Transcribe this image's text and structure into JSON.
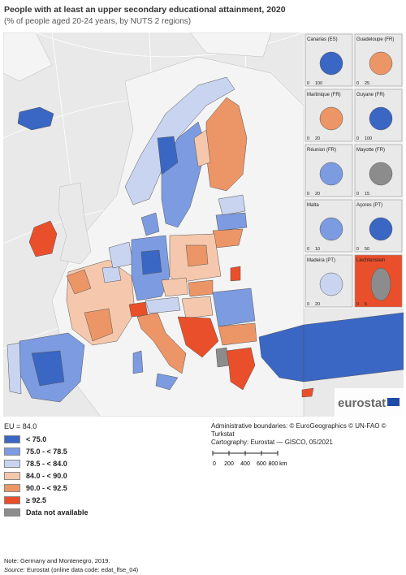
{
  "title": "People with at least an upper secondary educational attainment, 2020",
  "subtitle": "(% of people aged 20-24 years, by NUTS 2 regions)",
  "colors": {
    "lt75": "#3a66c4",
    "b75_785": "#7c9be0",
    "b785_84": "#c9d4f0",
    "b84_90": "#f5c8ad",
    "b90_925": "#ec9567",
    "ge925": "#e94f2a",
    "na": "#8c8c8c",
    "sea": "#e8e8e8",
    "land": "#f3f3f3"
  },
  "insets": [
    {
      "name": "Canarias (ES)",
      "scale": [
        "0",
        "100"
      ]
    },
    {
      "name": "Guadeloupe (FR)",
      "scale": [
        "0",
        "25"
      ]
    },
    {
      "name": "Martinique (FR)",
      "scale": [
        "0",
        "20"
      ]
    },
    {
      "name": "Guyane (FR)",
      "scale": [
        "0",
        "100"
      ]
    },
    {
      "name": "Réunion (FR)",
      "scale": [
        "0",
        "20"
      ]
    },
    {
      "name": "Mayotte (FR)",
      "scale": [
        "0",
        "15"
      ]
    },
    {
      "name": "Malta",
      "scale": [
        "0",
        "10"
      ]
    },
    {
      "name": "Açores (PT)",
      "scale": [
        "0",
        "50"
      ]
    },
    {
      "name": "Madeira (PT)",
      "scale": [
        "0",
        "20"
      ]
    },
    {
      "name": "Liechtenstein",
      "scale": [
        "0",
        "5"
      ]
    }
  ],
  "legend": {
    "average": "EU = 84.0",
    "items": [
      {
        "label": "< 75.0",
        "color": "#3a66c4"
      },
      {
        "label": "75.0 - < 78.5",
        "color": "#7c9be0"
      },
      {
        "label": "78.5 - < 84.0",
        "color": "#c9d4f0"
      },
      {
        "label": "84.0 - < 90.0",
        "color": "#f5c8ad"
      },
      {
        "label": "90.0 - < 92.5",
        "color": "#ec9567"
      },
      {
        "label": "≥ 92.5",
        "color": "#e94f2a"
      },
      {
        "label": "Data not available",
        "color": "#8c8c8c"
      }
    ]
  },
  "credits": {
    "line1": "Administrative boundaries: © EuroGeographics © UN-FAO © Turkstat",
    "line2": "Cartography: Eurostat — GISCO, 05/2021"
  },
  "scalebar": {
    "ticks": [
      "0",
      "200",
      "400",
      "600",
      "800 km"
    ]
  },
  "logo": "eurostat",
  "note": "Note: Germany and Montenegro, 2019.",
  "source_label": "Source:",
  "source_text": "Eurostat (online data code: edat_lfse_04)"
}
